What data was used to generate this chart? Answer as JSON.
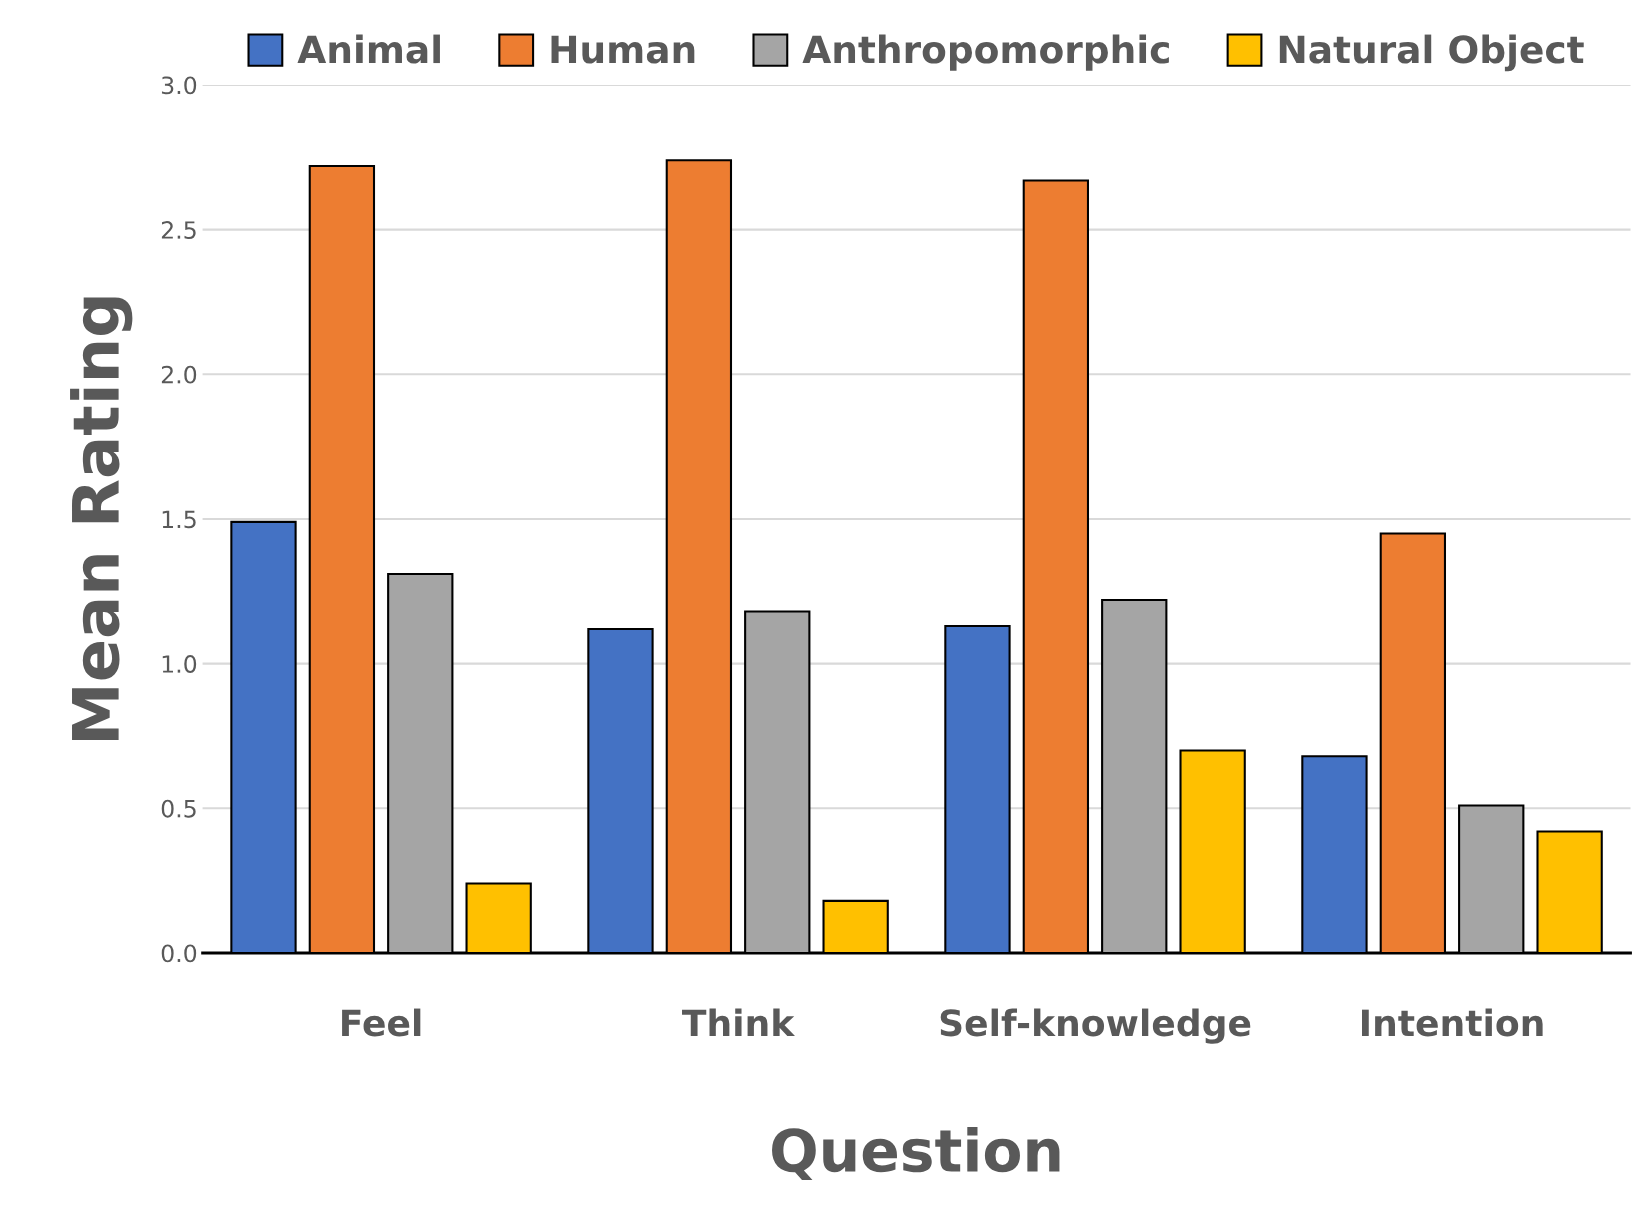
{
  "chart_data": {
    "type": "bar",
    "xlabel": "Question",
    "ylabel": "Mean Rating",
    "categories": [
      "Feel",
      "Think",
      "Self-knowledge",
      "Intention"
    ],
    "series": [
      {
        "name": "Animal",
        "color": "#4472c4",
        "values": [
          1.49,
          1.12,
          1.13,
          0.68
        ]
      },
      {
        "name": "Human",
        "color": "#ed7d31",
        "values": [
          2.72,
          2.74,
          2.67,
          1.45
        ]
      },
      {
        "name": "Anthropomorphic",
        "color": "#a5a5a5",
        "values": [
          1.31,
          1.18,
          1.22,
          0.51
        ]
      },
      {
        "name": "Natural Object",
        "color": "#ffc000",
        "values": [
          0.24,
          0.18,
          0.7,
          0.42
        ]
      }
    ],
    "ylim": [
      0,
      3.0
    ],
    "yticks": [
      {
        "value": 0,
        "label": "0.0"
      },
      {
        "value": 0.5,
        "label": "0.5"
      },
      {
        "value": 1.0,
        "label": "1.0"
      },
      {
        "value": 1.5,
        "label": "1.5"
      },
      {
        "value": 2.0,
        "label": "2.0"
      },
      {
        "value": 2.5,
        "label": "2.5"
      },
      {
        "value": 3.0,
        "label": "3.0"
      }
    ],
    "grid": "y",
    "legend": "top"
  }
}
